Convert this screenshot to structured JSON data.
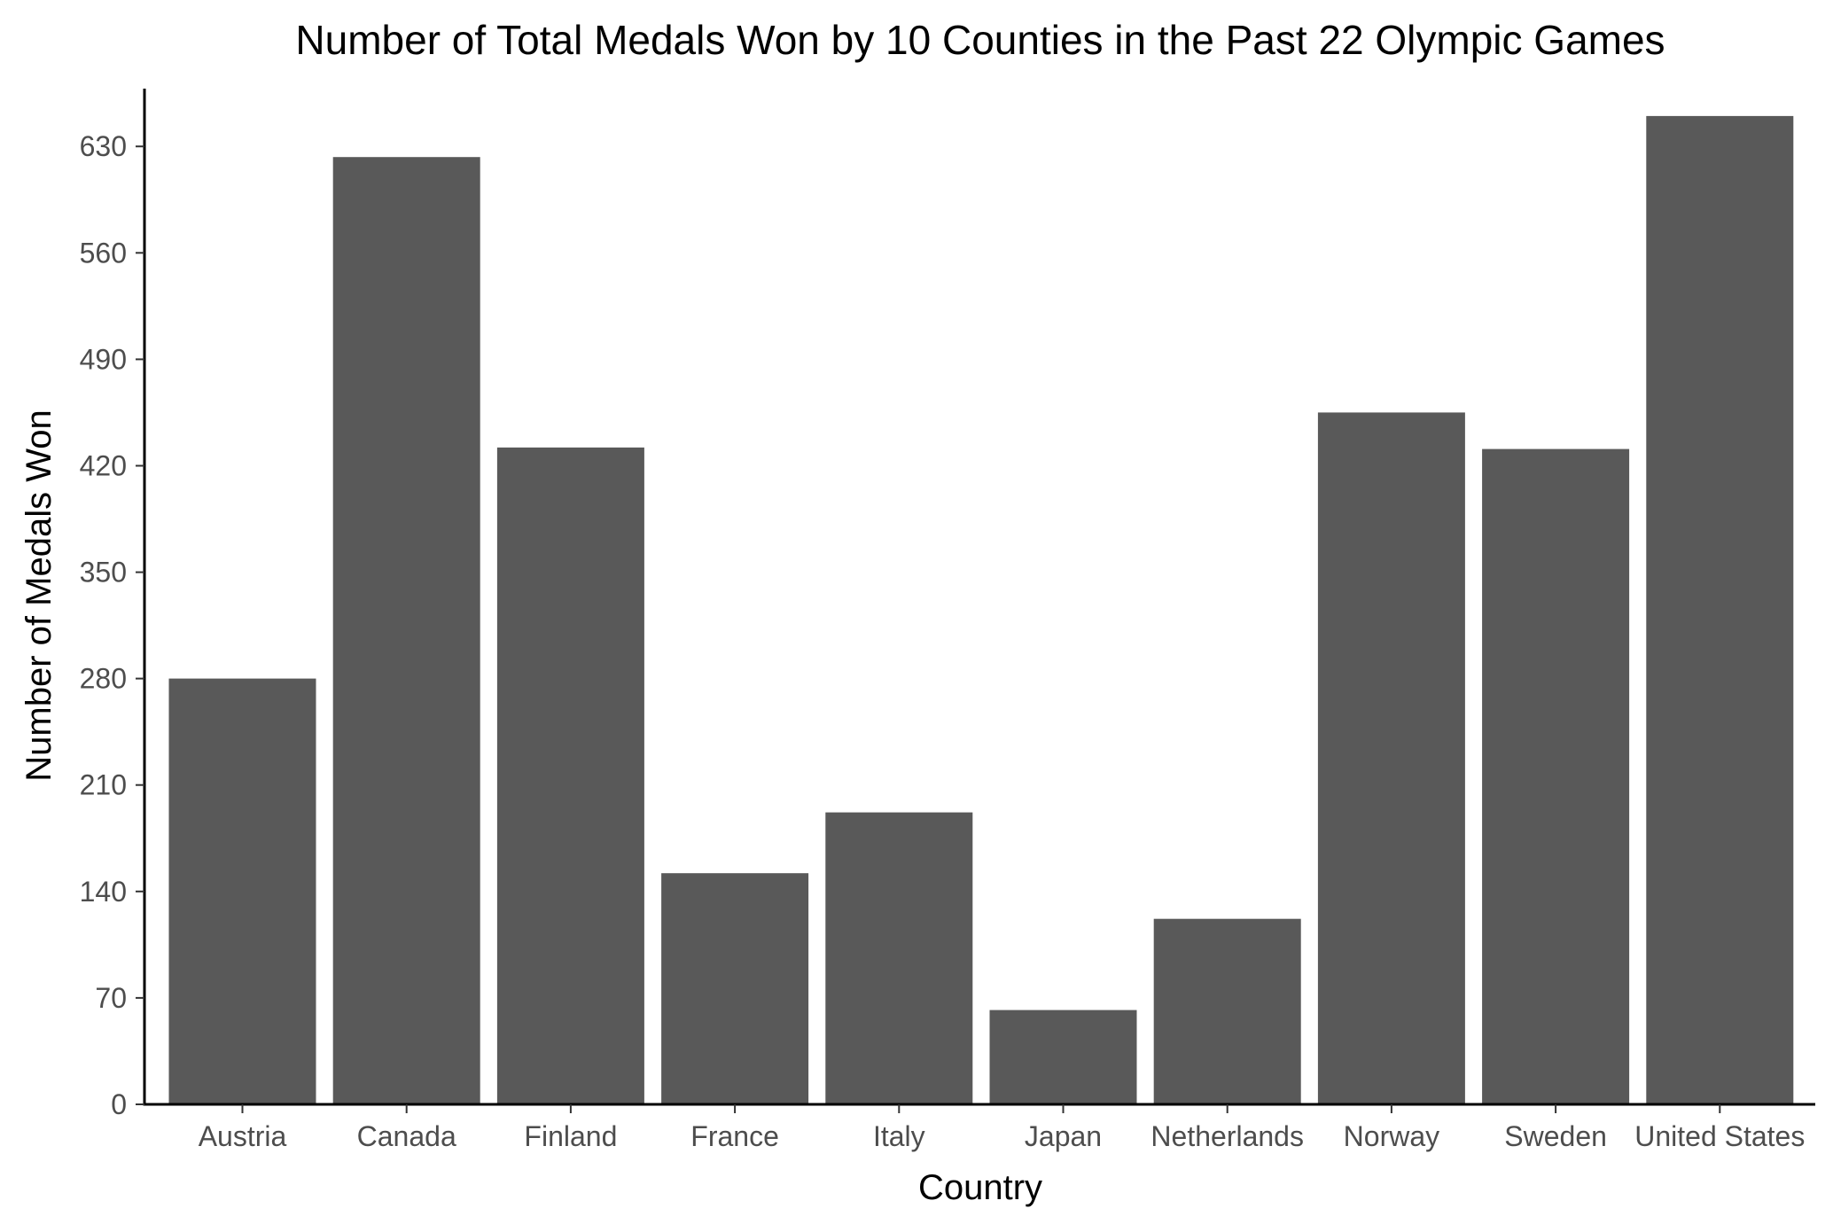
{
  "chart_data": {
    "type": "bar",
    "title": "Number of Total Medals Won by 10 Counties in the Past 22 Olympic Games",
    "xlabel": "Country",
    "ylabel": "Number of Medals Won",
    "categories": [
      "Austria",
      "Canada",
      "Finland",
      "France",
      "Italy",
      "Japan",
      "Netherlands",
      "Norway",
      "Sweden",
      "United States"
    ],
    "values": [
      280,
      623,
      432,
      152,
      192,
      62,
      122,
      455,
      431,
      650
    ],
    "yticks": [
      0,
      70,
      140,
      210,
      280,
      350,
      420,
      490,
      560,
      630
    ],
    "ytick_labels": [
      "0",
      "70",
      "140",
      "210",
      "280",
      "350",
      "420",
      "490",
      "560",
      "630"
    ],
    "ylim": [
      0,
      668
    ],
    "grid": false,
    "legend": "none",
    "bar_color": "#595959"
  }
}
